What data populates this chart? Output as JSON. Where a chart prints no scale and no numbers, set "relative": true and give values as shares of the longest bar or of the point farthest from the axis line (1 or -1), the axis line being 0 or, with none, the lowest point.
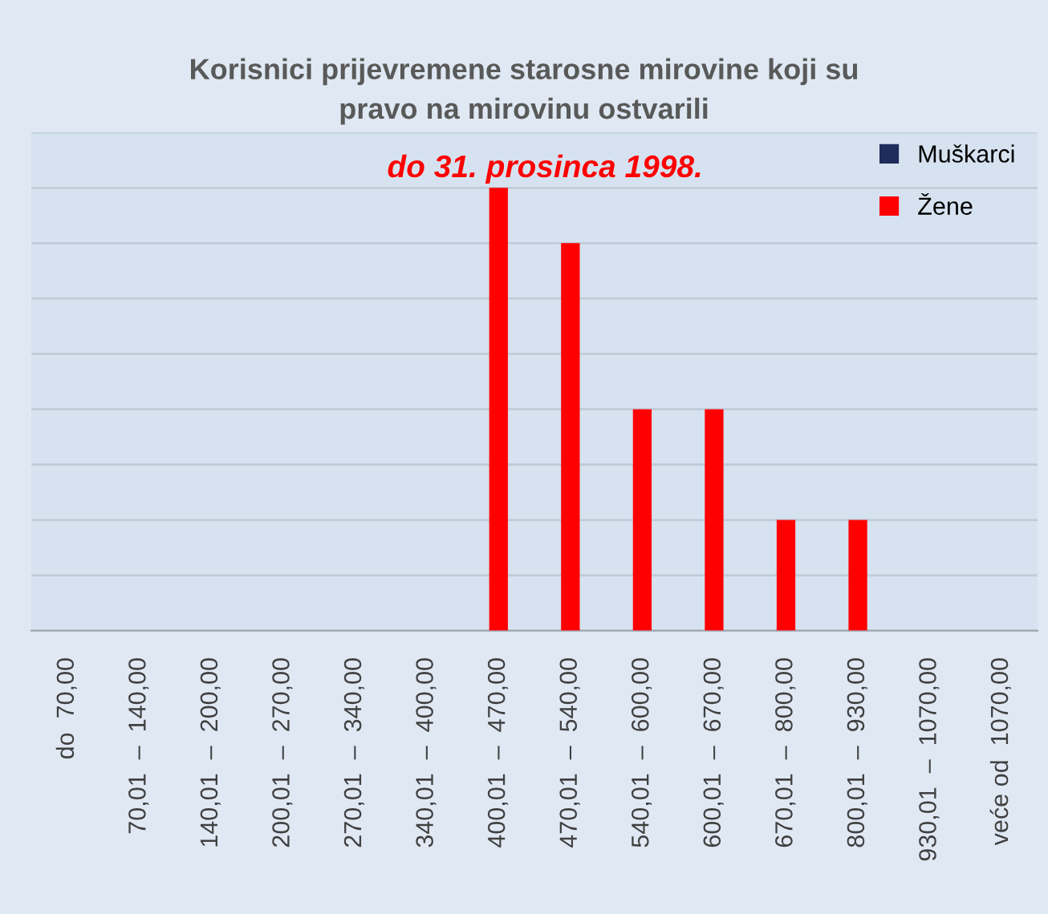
{
  "chart_data": {
    "type": "bar",
    "title": "Korisnici prijevremene starosne mirovine koji su\npravo na mirovinu ostvarili",
    "subtitle": "do 31. prosinca 1998.",
    "categories": [
      "do  70,00",
      "70,01  –  140,00",
      "140,01  –  200,00",
      "200,01  –  270,00",
      "270,01  –  340,00",
      "340,01  –  400,00",
      "400,01  –  470,00",
      "470,01  –  540,00",
      "540,01  –  600,00",
      "600,01  –  670,00",
      "670,01  –  800,00",
      "800,01  –  930,00",
      "930,01  –  1070,00",
      "veće od  1070,00"
    ],
    "series": [
      {
        "name": "Muškarci",
        "color": "#1f2d5c",
        "values": [
          0,
          0,
          0,
          0,
          0,
          0,
          0,
          0,
          0,
          0,
          0,
          0,
          0,
          0
        ]
      },
      {
        "name": "Žene",
        "color": "#ff0000",
        "values": [
          0,
          0,
          0,
          0,
          0,
          0,
          1,
          0.875,
          0.5,
          0.5,
          0.25,
          0.25,
          0,
          0
        ]
      }
    ],
    "relative": true,
    "grid": "y",
    "legend": "top right"
  }
}
